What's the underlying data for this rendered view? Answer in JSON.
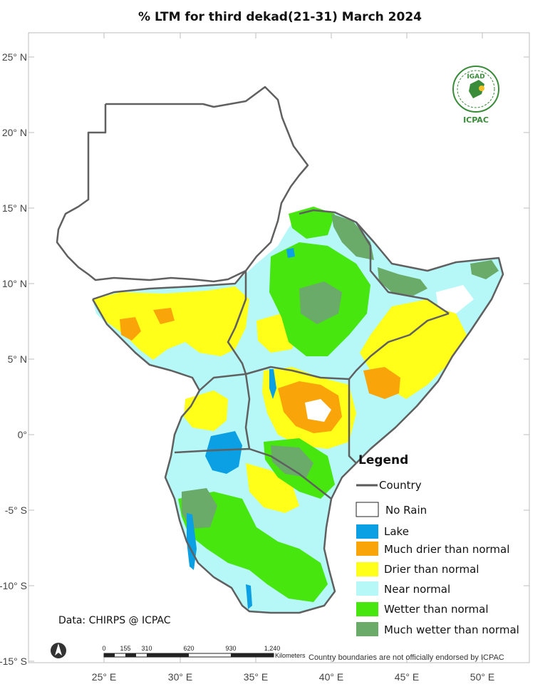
{
  "title": "% LTM  for   third dekad(21-31) March 2024",
  "axes": {
    "lat_labels": [
      "25° N",
      "20° N",
      "15° N",
      "10° N",
      "5° N",
      "0°",
      "-5° S",
      "-10° S",
      "-15° S"
    ],
    "lon_labels": [
      "25° E",
      "30° E",
      "35° E",
      "40° E",
      "45° E",
      "50° E"
    ]
  },
  "legend": {
    "title": "Legend",
    "items": [
      {
        "label": "Country",
        "kind": "line",
        "color": "#5a5a5a"
      },
      {
        "label": "No Rain",
        "kind": "box",
        "color": "#ffffff"
      },
      {
        "label": "Lake",
        "kind": "box",
        "color": "#0b9fe3"
      },
      {
        "label": "Much drier than normal",
        "kind": "box",
        "color": "#f9a50a"
      },
      {
        "label": "Drier than normal",
        "kind": "box",
        "color": "#ffff19"
      },
      {
        "label": "Near normal",
        "kind": "box",
        "color": "#b6f7f7"
      },
      {
        "label": "Wetter than normal",
        "kind": "box",
        "color": "#46e60e"
      },
      {
        "label": "Much wetter than normal",
        "kind": "box",
        "color": "#6aab6a"
      }
    ]
  },
  "logo": {
    "top_text": "IGAD",
    "bottom_text": "ICPAC"
  },
  "credit": "Data: CHIRPS @ ICPAC",
  "scale_bar": {
    "ticks": [
      "0",
      "155",
      "310",
      "620",
      "930",
      "1,240"
    ],
    "unit": "Kilometers"
  },
  "disclaimer": "Country boundaries are not officially endorsed by ICPAC",
  "north_arrow_icon": "north-arrow-icon"
}
